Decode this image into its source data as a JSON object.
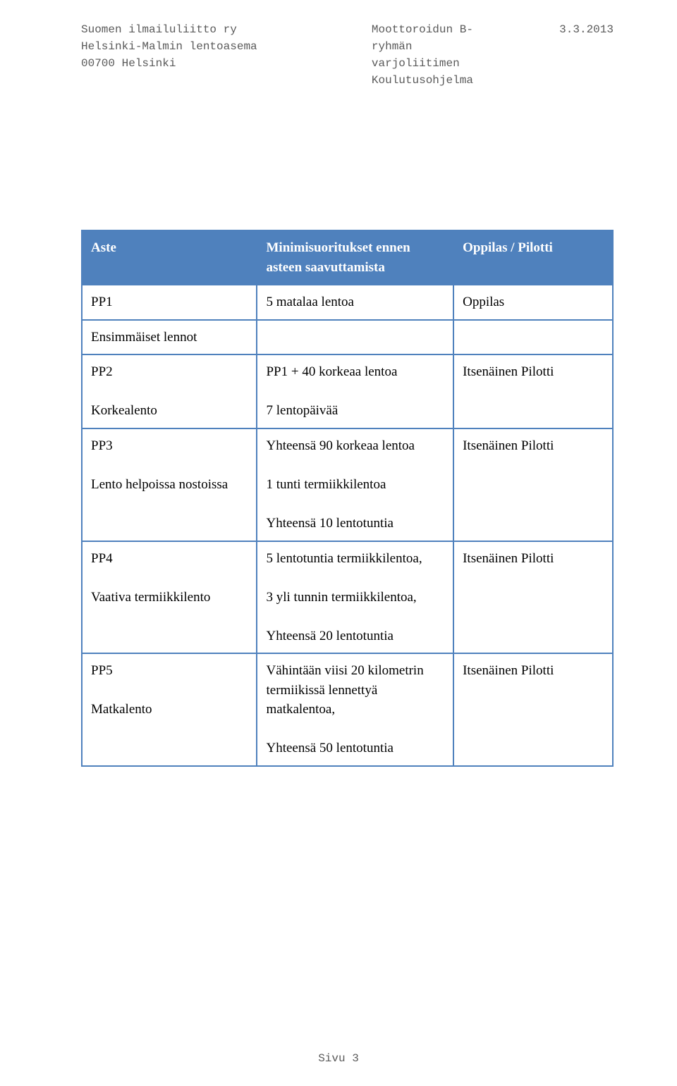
{
  "header": {
    "left_line1": "Suomen ilmailuliitto ry",
    "left_line2": "Helsinki-Malmin lentoasema",
    "left_line3": "00700 Helsinki",
    "mid_line1": "Moottoroidun B-",
    "mid_line2": "ryhmän",
    "mid_line3": "varjoliitimen",
    "mid_line4": "Koulutusohjelma",
    "right": "3.3.2013"
  },
  "colors": {
    "header_row_bg": "#4f81bd",
    "header_row_text": "#ffffff",
    "body_bg": "#ffffff",
    "border": "#4f81bd",
    "text": "#000000"
  },
  "table": {
    "col_widths": [
      "33%",
      "37%",
      "30%"
    ],
    "head": {
      "c1": "Aste",
      "c2": "Minimisuoritukset ennen asteen saavuttamista",
      "c3": "Oppilas / Pilotti"
    },
    "rows": [
      {
        "c1": "PP1",
        "c2": "5 matalaa lentoa",
        "c3": "Oppilas"
      },
      {
        "c1": "Ensimmäiset lennot",
        "c2": "",
        "c3": ""
      },
      {
        "c1": "PP2\n\nKorkealento",
        "c2": "PP1 + 40 korkeaa lentoa\n\n7 lentopäivää",
        "c3": "Itsenäinen Pilotti"
      },
      {
        "c1": "PP3\n\nLento helpoissa nostoissa",
        "c2": "Yhteensä 90 korkeaa lentoa\n\n1 tunti termiikkilentoa\n\nYhteensä 10 lentotuntia",
        "c3": "Itsenäinen Pilotti"
      },
      {
        "c1": "PP4\n\nVaativa termiikkilento",
        "c2": "5 lentotuntia termiikkilentoa,\n\n3 yli tunnin termiikkilentoa,\n\nYhteensä  20 lentotuntia",
        "c3": "Itsenäinen Pilotti"
      },
      {
        "c1": "PP5\n\nMatkalento",
        "c2": "Vähintään viisi 20 kilometrin termiikissä lennettyä matkalentoa,\n\nYhteensä 50 lentotuntia",
        "c3": "Itsenäinen Pilotti"
      }
    ]
  },
  "footer": "Sivu 3"
}
